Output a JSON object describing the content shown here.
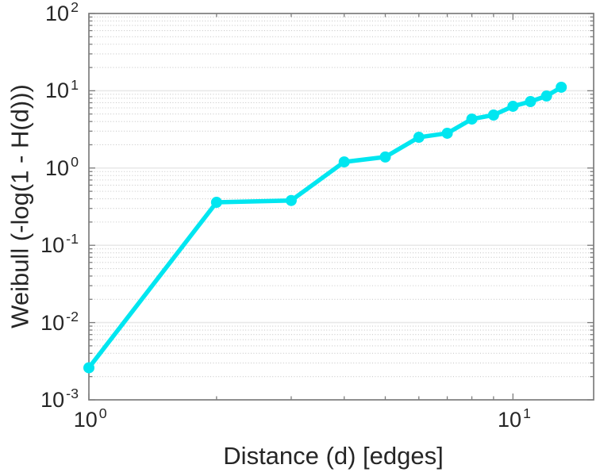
{
  "figure": {
    "background": "#ffffff"
  },
  "chart_data": {
    "type": "line",
    "title": "",
    "xlabel": "Distance (d) [edges]",
    "ylabel": "Weibull (-log(1 - H(d)))",
    "xscale": "log",
    "yscale": "log",
    "xlim": [
      1,
      15.5
    ],
    "ylim": [
      0.001,
      100
    ],
    "x": [
      1,
      2,
      3,
      4,
      5,
      6,
      7,
      8,
      9,
      10,
      11,
      12,
      13
    ],
    "y": [
      0.0026,
      0.36,
      0.38,
      1.2,
      1.39,
      2.5,
      2.82,
      4.3,
      4.85,
      6.3,
      7.25,
      8.55,
      11.1
    ],
    "x_ticks": [
      {
        "base": "10",
        "exp": "0",
        "value": 1
      },
      {
        "base": "10",
        "exp": "1",
        "value": 10
      }
    ],
    "y_ticks": [
      {
        "base": "10",
        "exp": "2",
        "value": 100
      },
      {
        "base": "10",
        "exp": "1",
        "value": 10
      },
      {
        "base": "10",
        "exp": "0",
        "value": 1
      },
      {
        "base": "10",
        "exp": "-1",
        "value": 0.1
      },
      {
        "base": "10",
        "exp": "-2",
        "value": 0.01
      },
      {
        "base": "10",
        "exp": "-3",
        "value": 0.001
      }
    ],
    "grid": {
      "major": "solid",
      "minor": "dotted",
      "orientation": "horizontal-only",
      "legend": "none"
    },
    "style": {
      "line_color": "#00e6f0",
      "marker": "filled-circle",
      "marker_color": "#00e6f0",
      "axis_color": "#7d7d7d",
      "grid_major_color": "#e9e9e9",
      "grid_minor_color": "#c9c9c9",
      "text_color": "#262626",
      "background": "#ffffff"
    }
  }
}
